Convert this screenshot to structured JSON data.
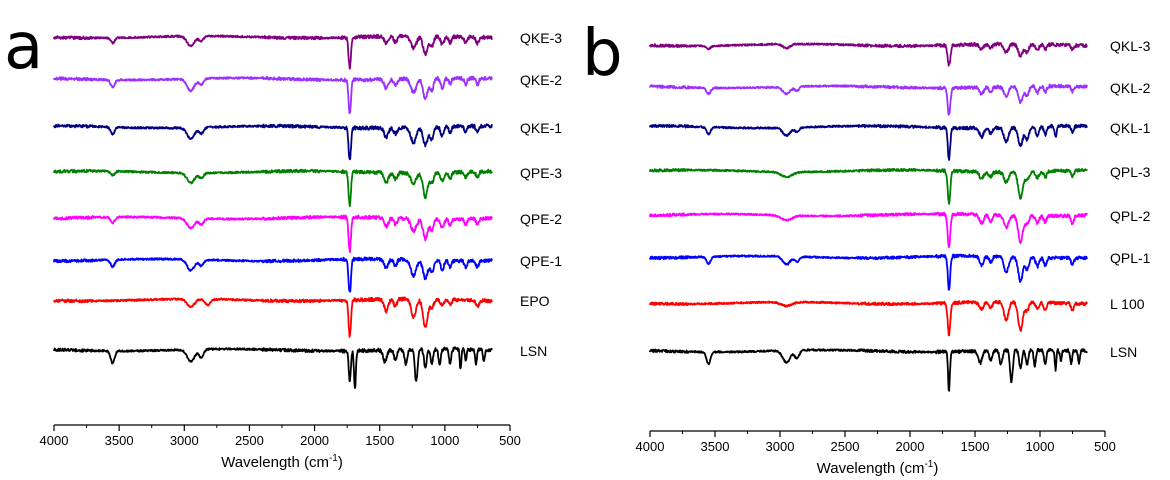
{
  "chart_data": [
    {
      "type": "line",
      "panel_label": "a",
      "xlabel": "Wavelength (cm⁻¹)",
      "xlabel_parts": {
        "base": "Wavelength (cm",
        "sup": "-1",
        "close": ")"
      },
      "xlim": [
        4000,
        500
      ],
      "xticks": [
        4000,
        3500,
        3000,
        2500,
        2000,
        1500,
        1000,
        500
      ],
      "y_axis_visible": false,
      "grid": false,
      "legend": "labels at right end of each trace",
      "series": [
        {
          "name": "QKE-3",
          "color": "#800080",
          "peaks": [
            [
              3550,
              0.25,
              22
            ],
            [
              2950,
              0.5,
              40
            ],
            [
              2870,
              0.25,
              25
            ],
            [
              1730,
              1.5,
              13
            ],
            [
              1450,
              0.35,
              22
            ],
            [
              1380,
              0.3,
              18
            ],
            [
              1240,
              0.6,
              30
            ],
            [
              1150,
              0.9,
              25
            ],
            [
              1100,
              0.5,
              20
            ],
            [
              1020,
              0.4,
              18
            ],
            [
              960,
              0.3,
              15
            ],
            [
              840,
              0.3,
              15
            ],
            [
              750,
              0.3,
              15
            ]
          ]
        },
        {
          "name": "QKE-2",
          "color": "#9b30ff",
          "peaks": [
            [
              3550,
              0.35,
              22
            ],
            [
              2950,
              0.6,
              40
            ],
            [
              2870,
              0.3,
              25
            ],
            [
              1730,
              1.7,
              13
            ],
            [
              1450,
              0.45,
              22
            ],
            [
              1380,
              0.3,
              18
            ],
            [
              1240,
              0.7,
              30
            ],
            [
              1150,
              1.0,
              25
            ],
            [
              1100,
              0.6,
              20
            ],
            [
              1020,
              0.5,
              18
            ],
            [
              960,
              0.3,
              15
            ],
            [
              840,
              0.3,
              15
            ],
            [
              750,
              0.3,
              15
            ]
          ]
        },
        {
          "name": "QKE-1",
          "color": "#000080",
          "peaks": [
            [
              3550,
              0.35,
              22
            ],
            [
              2950,
              0.55,
              40
            ],
            [
              2870,
              0.3,
              25
            ],
            [
              1730,
              1.6,
              13
            ],
            [
              1450,
              0.45,
              22
            ],
            [
              1380,
              0.3,
              18
            ],
            [
              1240,
              0.75,
              30
            ],
            [
              1150,
              0.9,
              25
            ],
            [
              1100,
              0.6,
              20
            ],
            [
              1020,
              0.45,
              18
            ],
            [
              960,
              0.3,
              15
            ],
            [
              840,
              0.3,
              15
            ],
            [
              750,
              0.3,
              15
            ]
          ]
        },
        {
          "name": "QPE-3",
          "color": "#008000",
          "peaks": [
            [
              3550,
              0.2,
              22
            ],
            [
              2950,
              0.5,
              40
            ],
            [
              2870,
              0.25,
              25
            ],
            [
              1730,
              1.7,
              13
            ],
            [
              1450,
              0.5,
              22
            ],
            [
              1380,
              0.3,
              18
            ],
            [
              1240,
              0.5,
              30
            ],
            [
              1150,
              1.2,
              25
            ],
            [
              1100,
              0.5,
              20
            ],
            [
              1020,
              0.4,
              18
            ],
            [
              960,
              0.3,
              15
            ],
            [
              840,
              0.25,
              15
            ],
            [
              750,
              0.3,
              15
            ]
          ]
        },
        {
          "name": "QPE-2",
          "color": "#ff00ff",
          "peaks": [
            [
              3550,
              0.3,
              22
            ],
            [
              2950,
              0.5,
              40
            ],
            [
              2870,
              0.3,
              25
            ],
            [
              1730,
              1.7,
              13
            ],
            [
              1450,
              0.45,
              22
            ],
            [
              1380,
              0.3,
              18
            ],
            [
              1240,
              0.6,
              30
            ],
            [
              1150,
              1.0,
              25
            ],
            [
              1100,
              0.55,
              20
            ],
            [
              1020,
              0.45,
              18
            ],
            [
              960,
              0.3,
              15
            ],
            [
              840,
              0.3,
              15
            ],
            [
              750,
              0.3,
              15
            ]
          ]
        },
        {
          "name": "QPE-1",
          "color": "#0000ff",
          "peaks": [
            [
              3550,
              0.35,
              22
            ],
            [
              2950,
              0.55,
              40
            ],
            [
              2870,
              0.3,
              25
            ],
            [
              1730,
              1.7,
              13
            ],
            [
              1450,
              0.45,
              22
            ],
            [
              1380,
              0.3,
              18
            ],
            [
              1240,
              0.8,
              30
            ],
            [
              1150,
              0.9,
              25
            ],
            [
              1100,
              0.6,
              20
            ],
            [
              1020,
              0.45,
              18
            ],
            [
              960,
              0.3,
              15
            ],
            [
              840,
              0.3,
              15
            ],
            [
              750,
              0.3,
              15
            ]
          ]
        },
        {
          "name": "EPO",
          "color": "#ff0000",
          "peaks": [
            [
              2950,
              0.4,
              40
            ],
            [
              2820,
              0.3,
              30
            ],
            [
              1730,
              1.8,
              13
            ],
            [
              1450,
              0.6,
              22
            ],
            [
              1380,
              0.35,
              18
            ],
            [
              1240,
              0.9,
              25
            ],
            [
              1150,
              1.4,
              25
            ],
            [
              1100,
              0.4,
              20
            ],
            [
              1020,
              0.3,
              18
            ],
            [
              960,
              0.25,
              15
            ],
            [
              750,
              0.35,
              15
            ]
          ]
        },
        {
          "name": "LSN",
          "color": "#000000",
          "peaks": [
            [
              3550,
              0.6,
              22
            ],
            [
              2950,
              0.6,
              40
            ],
            [
              2870,
              0.4,
              25
            ],
            [
              1730,
              1.5,
              11
            ],
            [
              1690,
              1.9,
              10
            ],
            [
              1460,
              0.6,
              20
            ],
            [
              1380,
              0.5,
              15
            ],
            [
              1300,
              0.7,
              15
            ],
            [
              1220,
              1.6,
              15
            ],
            [
              1150,
              0.9,
              15
            ],
            [
              1100,
              0.7,
              15
            ],
            [
              1040,
              0.8,
              12
            ],
            [
              960,
              0.7,
              12
            ],
            [
              880,
              1.0,
              8
            ],
            [
              840,
              0.5,
              10
            ],
            [
              760,
              0.7,
              10
            ],
            [
              700,
              0.6,
              10
            ]
          ]
        }
      ]
    },
    {
      "type": "line",
      "panel_label": "b",
      "xlabel": "Wavelength (cm⁻¹)",
      "xlabel_parts": {
        "base": "Wavelength (cm",
        "sup": "-1",
        "close": ")"
      },
      "xlim": [
        4000,
        500
      ],
      "xticks": [
        4000,
        3500,
        3000,
        2500,
        2000,
        1500,
        1000,
        500
      ],
      "y_axis_visible": false,
      "grid": false,
      "legend": "labels at right end of each trace",
      "series": [
        {
          "name": "QKL-3",
          "color": "#800080",
          "peaks": [
            [
              3550,
              0.15,
              22
            ],
            [
              2950,
              0.2,
              40
            ],
            [
              1700,
              1.0,
              15
            ],
            [
              1450,
              0.25,
              22
            ],
            [
              1380,
              0.2,
              18
            ],
            [
              1260,
              0.4,
              25
            ],
            [
              1150,
              0.6,
              25
            ],
            [
              1100,
              0.4,
              20
            ],
            [
              1020,
              0.3,
              18
            ],
            [
              960,
              0.25,
              15
            ],
            [
              750,
              0.2,
              15
            ]
          ]
        },
        {
          "name": "QKL-2",
          "color": "#9b30ff",
          "peaks": [
            [
              3550,
              0.3,
              22
            ],
            [
              2950,
              0.35,
              40
            ],
            [
              2870,
              0.2,
              25
            ],
            [
              1700,
              1.3,
              15
            ],
            [
              1450,
              0.35,
              22
            ],
            [
              1380,
              0.25,
              18
            ],
            [
              1260,
              0.5,
              25
            ],
            [
              1150,
              0.8,
              25
            ],
            [
              1100,
              0.5,
              20
            ],
            [
              1020,
              0.35,
              18
            ],
            [
              960,
              0.3,
              15
            ],
            [
              750,
              0.25,
              15
            ]
          ]
        },
        {
          "name": "QKL-1",
          "color": "#000080",
          "peaks": [
            [
              3550,
              0.35,
              22
            ],
            [
              2950,
              0.4,
              40
            ],
            [
              2870,
              0.2,
              25
            ],
            [
              1700,
              1.6,
              13
            ],
            [
              1450,
              0.45,
              22
            ],
            [
              1380,
              0.3,
              18
            ],
            [
              1260,
              0.7,
              25
            ],
            [
              1150,
              0.9,
              25
            ],
            [
              1100,
              0.6,
              20
            ],
            [
              1020,
              0.45,
              18
            ],
            [
              960,
              0.4,
              15
            ],
            [
              880,
              0.5,
              10
            ],
            [
              750,
              0.3,
              15
            ]
          ]
        },
        {
          "name": "QPL-3",
          "color": "#008000",
          "peaks": [
            [
              2950,
              0.25,
              60
            ],
            [
              1700,
              1.6,
              14
            ],
            [
              1450,
              0.35,
              22
            ],
            [
              1380,
              0.25,
              18
            ],
            [
              1260,
              0.5,
              25
            ],
            [
              1150,
              1.3,
              25
            ],
            [
              1100,
              0.4,
              20
            ],
            [
              1020,
              0.3,
              18
            ],
            [
              960,
              0.3,
              15
            ],
            [
              750,
              0.3,
              15
            ]
          ]
        },
        {
          "name": "QPL-2",
          "color": "#ff00ff",
          "peaks": [
            [
              2950,
              0.25,
              60
            ],
            [
              1700,
              1.7,
              14
            ],
            [
              1450,
              0.4,
              22
            ],
            [
              1380,
              0.3,
              18
            ],
            [
              1260,
              0.6,
              25
            ],
            [
              1150,
              1.3,
              25
            ],
            [
              1100,
              0.4,
              20
            ],
            [
              1020,
              0.35,
              18
            ],
            [
              960,
              0.3,
              15
            ],
            [
              750,
              0.4,
              15
            ]
          ]
        },
        {
          "name": "QPL-1",
          "color": "#0000ff",
          "peaks": [
            [
              3550,
              0.35,
              22
            ],
            [
              2950,
              0.4,
              40
            ],
            [
              2870,
              0.25,
              25
            ],
            [
              1700,
              1.7,
              13
            ],
            [
              1450,
              0.45,
              22
            ],
            [
              1380,
              0.3,
              18
            ],
            [
              1260,
              0.8,
              25
            ],
            [
              1150,
              1.2,
              25
            ],
            [
              1100,
              0.6,
              20
            ],
            [
              1020,
              0.45,
              18
            ],
            [
              960,
              0.4,
              15
            ],
            [
              750,
              0.35,
              15
            ]
          ]
        },
        {
          "name": "L 100",
          "color": "#ff0000",
          "peaks": [
            [
              2950,
              0.2,
              60
            ],
            [
              1700,
              1.6,
              14
            ],
            [
              1450,
              0.35,
              22
            ],
            [
              1380,
              0.3,
              18
            ],
            [
              1260,
              0.9,
              25
            ],
            [
              1150,
              1.4,
              25
            ],
            [
              1100,
              0.4,
              20
            ],
            [
              1020,
              0.3,
              18
            ],
            [
              960,
              0.35,
              15
            ],
            [
              750,
              0.35,
              15
            ]
          ]
        },
        {
          "name": "LSN",
          "color": "#000000",
          "peaks": [
            [
              3550,
              0.6,
              22
            ],
            [
              2950,
              0.6,
              40
            ],
            [
              2870,
              0.4,
              25
            ],
            [
              1700,
              1.9,
              10
            ],
            [
              1460,
              0.6,
              20
            ],
            [
              1380,
              0.5,
              15
            ],
            [
              1300,
              0.7,
              15
            ],
            [
              1220,
              1.6,
              15
            ],
            [
              1150,
              0.9,
              15
            ],
            [
              1100,
              0.7,
              15
            ],
            [
              1040,
              0.8,
              12
            ],
            [
              960,
              0.7,
              12
            ],
            [
              880,
              1.0,
              8
            ],
            [
              840,
              0.5,
              10
            ],
            [
              760,
              0.7,
              10
            ],
            [
              700,
              0.6,
              10
            ]
          ]
        }
      ]
    }
  ]
}
